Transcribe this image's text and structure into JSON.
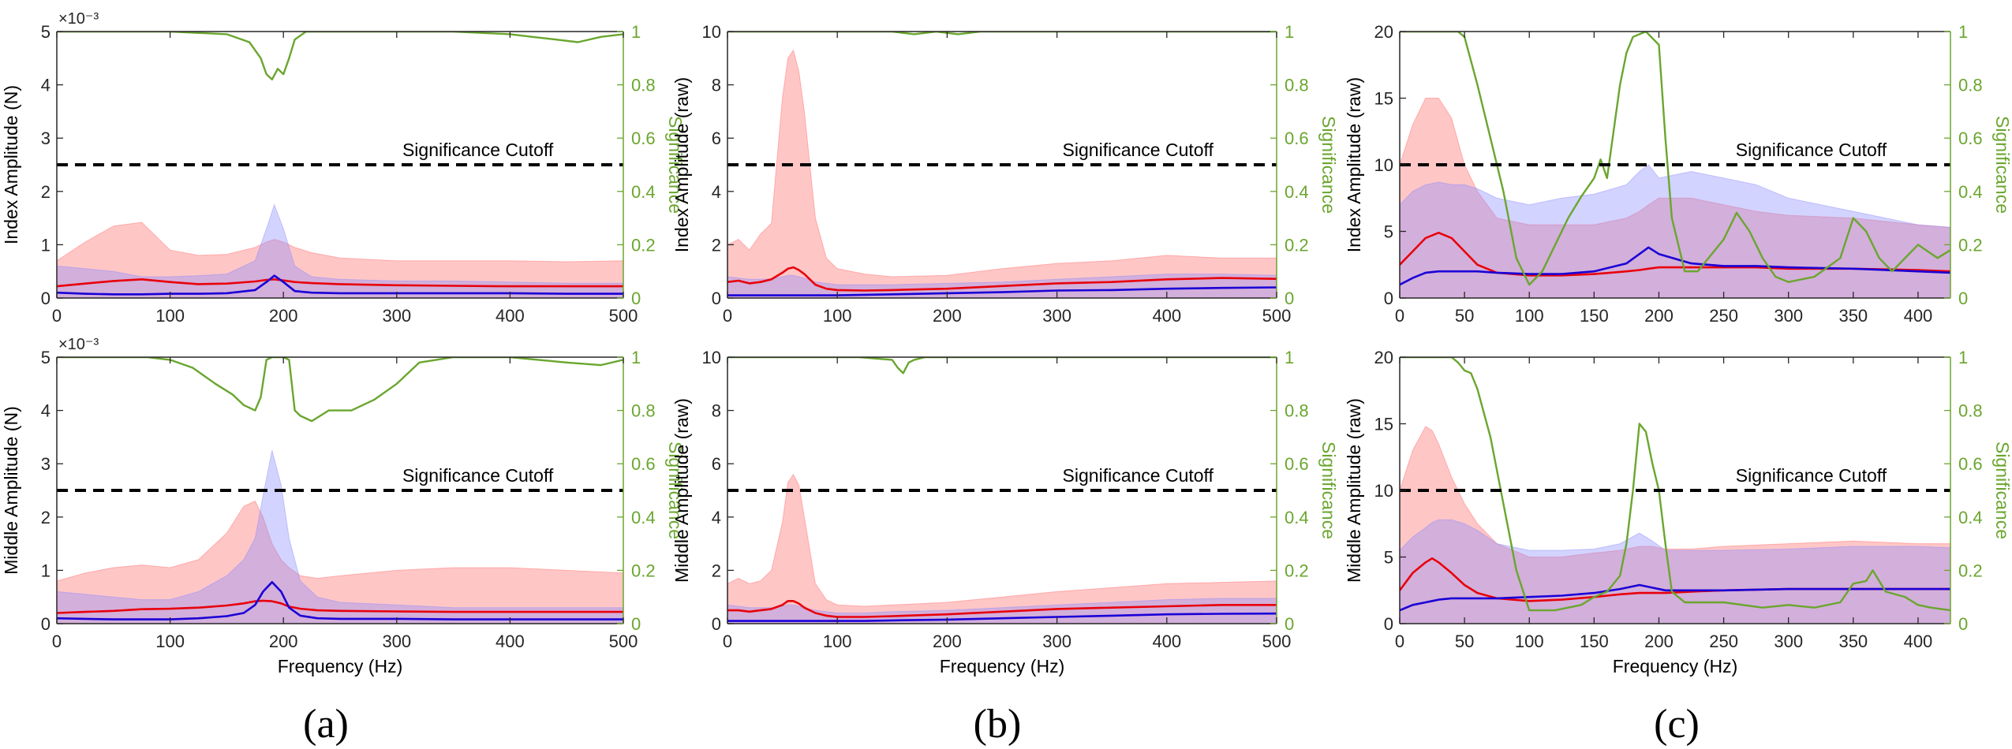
{
  "figure": {
    "captions": [
      "(a)",
      "(b)",
      "(c)"
    ],
    "colors": {
      "red_line": "#e8000b",
      "blue_line": "#1a00d6",
      "red_fill": "#ff6a6a",
      "blue_fill": "#8c8cff",
      "significance": "#6aa62e",
      "cutoff": "#000000",
      "axis": "#262626"
    }
  },
  "chart_data": [
    {
      "id": "a-top",
      "type": "line",
      "ylabel": "Index Amplitude (N)",
      "y2label": "Significance",
      "xlabel": "",
      "exponent": "×10⁻³",
      "xlim": [
        0,
        500
      ],
      "xticks": [
        0,
        100,
        200,
        300,
        400,
        500
      ],
      "ylim": [
        0,
        5
      ],
      "yticks": [
        0,
        1,
        2,
        3,
        4,
        5
      ],
      "y2lim": [
        0,
        1
      ],
      "y2ticks": [
        0,
        0.2,
        0.4,
        0.6,
        0.8,
        1
      ],
      "cutoff": {
        "value": 2.5,
        "label": "Significance Cutoff"
      },
      "x": [
        0,
        25,
        50,
        75,
        100,
        125,
        150,
        175,
        185,
        192,
        200,
        210,
        225,
        250,
        300,
        350,
        400,
        450,
        500
      ],
      "red_upper": [
        0.7,
        1.05,
        1.35,
        1.42,
        0.9,
        0.8,
        0.82,
        0.95,
        1.05,
        1.1,
        1.05,
        0.95,
        0.85,
        0.75,
        0.7,
        0.7,
        0.7,
        0.68,
        0.7
      ],
      "blue_upper": [
        0.6,
        0.55,
        0.5,
        0.4,
        0.4,
        0.42,
        0.45,
        0.7,
        1.3,
        1.75,
        1.3,
        0.6,
        0.4,
        0.35,
        0.32,
        0.32,
        0.3,
        0.28,
        0.28
      ],
      "red_mean": [
        0.22,
        0.27,
        0.32,
        0.35,
        0.3,
        0.26,
        0.27,
        0.31,
        0.34,
        0.35,
        0.33,
        0.3,
        0.28,
        0.26,
        0.24,
        0.23,
        0.22,
        0.22,
        0.22
      ],
      "blue_mean": [
        0.1,
        0.08,
        0.07,
        0.07,
        0.08,
        0.08,
        0.09,
        0.15,
        0.3,
        0.42,
        0.3,
        0.13,
        0.1,
        0.09,
        0.09,
        0.09,
        0.09,
        0.08,
        0.08
      ],
      "sig_x": [
        0,
        100,
        150,
        170,
        180,
        185,
        190,
        195,
        200,
        205,
        210,
        220,
        240,
        300,
        350,
        400,
        420,
        440,
        460,
        480,
        500
      ],
      "sig": [
        1.0,
        1.0,
        0.99,
        0.96,
        0.9,
        0.84,
        0.82,
        0.86,
        0.84,
        0.9,
        0.97,
        1.0,
        1.0,
        1.0,
        1.0,
        0.99,
        0.98,
        0.97,
        0.96,
        0.98,
        0.99
      ]
    },
    {
      "id": "b-top",
      "type": "line",
      "ylabel": "Index Amplitude (raw)",
      "y2label": "Significance",
      "xlabel": "",
      "exponent": "",
      "xlim": [
        0,
        500
      ],
      "xticks": [
        0,
        100,
        200,
        300,
        400,
        500
      ],
      "ylim": [
        0,
        10
      ],
      "yticks": [
        0,
        2,
        4,
        6,
        8,
        10
      ],
      "y2lim": [
        0,
        1
      ],
      "y2ticks": [
        0,
        0.2,
        0.4,
        0.6,
        0.8,
        1
      ],
      "cutoff": {
        "value": 5,
        "label": "Significance Cutoff"
      },
      "x": [
        0,
        10,
        20,
        30,
        40,
        50,
        55,
        60,
        65,
        70,
        80,
        90,
        100,
        125,
        150,
        200,
        250,
        300,
        350,
        400,
        450,
        500
      ],
      "red_upper": [
        2.0,
        2.2,
        1.8,
        2.4,
        2.8,
        7.5,
        9.0,
        9.3,
        8.5,
        7.0,
        3.0,
        1.5,
        1.1,
        0.9,
        0.8,
        0.85,
        1.1,
        1.3,
        1.4,
        1.6,
        1.5,
        1.5
      ],
      "blue_upper": [
        0.8,
        0.75,
        0.7,
        0.7,
        0.72,
        0.8,
        0.85,
        0.85,
        0.8,
        0.75,
        0.6,
        0.55,
        0.5,
        0.5,
        0.5,
        0.55,
        0.6,
        0.7,
        0.8,
        0.9,
        0.9,
        0.85
      ],
      "red_mean": [
        0.6,
        0.65,
        0.55,
        0.6,
        0.7,
        0.95,
        1.1,
        1.15,
        1.05,
        0.9,
        0.5,
        0.35,
        0.3,
        0.28,
        0.3,
        0.35,
        0.45,
        0.55,
        0.6,
        0.7,
        0.75,
        0.72
      ],
      "blue_mean": [
        0.1,
        0.1,
        0.1,
        0.1,
        0.1,
        0.1,
        0.1,
        0.1,
        0.1,
        0.1,
        0.1,
        0.1,
        0.1,
        0.12,
        0.14,
        0.18,
        0.22,
        0.28,
        0.3,
        0.35,
        0.38,
        0.4
      ],
      "sig_x": [
        0,
        150,
        170,
        190,
        210,
        230,
        300,
        400,
        500
      ],
      "sig": [
        1.0,
        1.0,
        0.99,
        1.0,
        0.99,
        1.0,
        1.0,
        1.0,
        1.0
      ]
    },
    {
      "id": "c-top",
      "type": "line",
      "ylabel": "Index Amplitude (raw)",
      "y2label": "Significance",
      "xlabel": "",
      "exponent": "",
      "xlim": [
        0,
        425
      ],
      "xticks": [
        0,
        50,
        100,
        150,
        200,
        250,
        300,
        350,
        400
      ],
      "ylim": [
        0,
        20
      ],
      "yticks": [
        0,
        5,
        10,
        15,
        20
      ],
      "y2lim": [
        0,
        1
      ],
      "y2ticks": [
        0,
        0.2,
        0.4,
        0.6,
        0.8,
        1
      ],
      "cutoff": {
        "value": 10,
        "label": "Significance Cutoff"
      },
      "x": [
        0,
        10,
        20,
        30,
        40,
        50,
        60,
        75,
        100,
        125,
        150,
        175,
        185,
        192,
        200,
        225,
        250,
        275,
        300,
        350,
        400,
        425
      ],
      "red_upper": [
        10,
        13,
        15,
        15,
        13.5,
        10,
        8,
        6,
        5.5,
        5.5,
        5.5,
        6,
        6.5,
        7,
        7.5,
        7.5,
        7,
        6.5,
        6.2,
        6,
        5.5,
        5.3
      ],
      "blue_upper": [
        7,
        8,
        8.5,
        8.7,
        8.5,
        8.5,
        8.2,
        7.5,
        7,
        7.5,
        7.8,
        8.5,
        9.5,
        10,
        9,
        9.5,
        9,
        8.5,
        7.5,
        6.5,
        5.5,
        5.3
      ],
      "red_mean": [
        2.5,
        3.5,
        4.5,
        4.9,
        4.5,
        3.5,
        2.5,
        1.9,
        1.7,
        1.7,
        1.8,
        2.0,
        2.1,
        2.2,
        2.3,
        2.3,
        2.3,
        2.3,
        2.2,
        2.2,
        2.1,
        2.0
      ],
      "blue_mean": [
        1.0,
        1.5,
        1.9,
        2.0,
        2.0,
        2.0,
        2.0,
        1.9,
        1.8,
        1.8,
        2.0,
        2.6,
        3.3,
        3.8,
        3.3,
        2.6,
        2.4,
        2.4,
        2.3,
        2.2,
        2.0,
        1.9
      ],
      "sig_x": [
        0,
        25,
        45,
        50,
        60,
        70,
        80,
        90,
        100,
        110,
        120,
        130,
        140,
        150,
        155,
        160,
        170,
        175,
        180,
        190,
        200,
        205,
        210,
        220,
        230,
        250,
        260,
        270,
        280,
        290,
        300,
        320,
        340,
        350,
        360,
        370,
        380,
        400,
        415,
        425
      ],
      "sig": [
        1.0,
        1.0,
        1.0,
        0.98,
        0.8,
        0.6,
        0.4,
        0.15,
        0.05,
        0.1,
        0.2,
        0.3,
        0.38,
        0.45,
        0.52,
        0.45,
        0.8,
        0.92,
        0.98,
        1.0,
        0.95,
        0.6,
        0.3,
        0.1,
        0.1,
        0.22,
        0.32,
        0.25,
        0.15,
        0.08,
        0.06,
        0.08,
        0.15,
        0.3,
        0.25,
        0.15,
        0.1,
        0.2,
        0.15,
        0.18
      ]
    },
    {
      "id": "a-bottom",
      "type": "line",
      "ylabel": "Middle Amplitude (N)",
      "y2label": "Significance",
      "xlabel": "Frequency (Hz)",
      "exponent": "×10⁻³",
      "xlim": [
        0,
        500
      ],
      "xticks": [
        0,
        100,
        200,
        300,
        400,
        500
      ],
      "ylim": [
        0,
        5
      ],
      "yticks": [
        0,
        1,
        2,
        3,
        4,
        5
      ],
      "y2lim": [
        0,
        1
      ],
      "y2ticks": [
        0,
        0.2,
        0.4,
        0.6,
        0.8,
        1
      ],
      "cutoff": {
        "value": 2.5,
        "label": "Significance Cutoff"
      },
      "x": [
        0,
        25,
        50,
        75,
        100,
        125,
        150,
        165,
        175,
        182,
        190,
        198,
        205,
        215,
        230,
        250,
        300,
        350,
        400,
        450,
        500
      ],
      "red_upper": [
        0.8,
        0.95,
        1.05,
        1.1,
        1.05,
        1.2,
        1.7,
        2.2,
        2.3,
        2.0,
        1.5,
        1.2,
        1.05,
        0.9,
        0.85,
        0.9,
        1.0,
        1.05,
        1.05,
        1.0,
        0.95
      ],
      "blue_upper": [
        0.6,
        0.55,
        0.5,
        0.45,
        0.45,
        0.6,
        0.9,
        1.2,
        1.6,
        2.4,
        3.25,
        2.6,
        1.6,
        0.8,
        0.5,
        0.4,
        0.35,
        0.3,
        0.3,
        0.3,
        0.3
      ],
      "red_mean": [
        0.2,
        0.22,
        0.24,
        0.27,
        0.28,
        0.3,
        0.34,
        0.38,
        0.42,
        0.43,
        0.42,
        0.38,
        0.32,
        0.28,
        0.25,
        0.24,
        0.23,
        0.22,
        0.22,
        0.22,
        0.22
      ],
      "blue_mean": [
        0.1,
        0.09,
        0.08,
        0.08,
        0.08,
        0.1,
        0.14,
        0.2,
        0.35,
        0.6,
        0.78,
        0.6,
        0.3,
        0.15,
        0.1,
        0.09,
        0.09,
        0.08,
        0.08,
        0.08,
        0.08
      ],
      "sig_x": [
        0,
        80,
        100,
        120,
        140,
        155,
        165,
        175,
        180,
        185,
        190,
        195,
        200,
        205,
        210,
        215,
        225,
        240,
        260,
        280,
        300,
        320,
        350,
        400,
        450,
        480,
        500
      ],
      "sig": [
        1.0,
        1.0,
        0.99,
        0.96,
        0.9,
        0.86,
        0.82,
        0.8,
        0.85,
        0.99,
        1.0,
        1.0,
        1.0,
        0.99,
        0.8,
        0.78,
        0.76,
        0.8,
        0.8,
        0.84,
        0.9,
        0.98,
        1.0,
        1.0,
        0.98,
        0.97,
        0.99
      ]
    },
    {
      "id": "b-bottom",
      "type": "line",
      "ylabel": "Middle Amplitude (raw)",
      "y2label": "Significance",
      "xlabel": "Frequency (Hz)",
      "exponent": "",
      "xlim": [
        0,
        500
      ],
      "xticks": [
        0,
        100,
        200,
        300,
        400,
        500
      ],
      "ylim": [
        0,
        10
      ],
      "yticks": [
        0,
        2,
        4,
        6,
        8,
        10
      ],
      "y2lim": [
        0,
        1
      ],
      "y2ticks": [
        0,
        0.2,
        0.4,
        0.6,
        0.8,
        1
      ],
      "cutoff": {
        "value": 5,
        "label": "Significance Cutoff"
      },
      "x": [
        0,
        10,
        20,
        30,
        40,
        50,
        55,
        60,
        65,
        70,
        80,
        90,
        100,
        125,
        150,
        200,
        250,
        300,
        350,
        400,
        450,
        500
      ],
      "red_upper": [
        1.5,
        1.7,
        1.5,
        1.6,
        2.0,
        3.8,
        5.3,
        5.6,
        5.2,
        4.0,
        1.5,
        0.9,
        0.7,
        0.65,
        0.7,
        0.8,
        1.0,
        1.2,
        1.35,
        1.5,
        1.55,
        1.6
      ],
      "blue_upper": [
        0.7,
        0.65,
        0.6,
        0.6,
        0.6,
        0.65,
        0.7,
        0.7,
        0.65,
        0.6,
        0.5,
        0.45,
        0.4,
        0.4,
        0.45,
        0.5,
        0.6,
        0.7,
        0.8,
        0.9,
        0.95,
        0.95
      ],
      "red_mean": [
        0.5,
        0.5,
        0.45,
        0.5,
        0.55,
        0.7,
        0.85,
        0.85,
        0.75,
        0.6,
        0.4,
        0.3,
        0.25,
        0.25,
        0.28,
        0.35,
        0.45,
        0.55,
        0.6,
        0.65,
        0.7,
        0.7
      ],
      "blue_mean": [
        0.1,
        0.1,
        0.1,
        0.1,
        0.1,
        0.1,
        0.1,
        0.1,
        0.1,
        0.1,
        0.1,
        0.1,
        0.1,
        0.1,
        0.12,
        0.15,
        0.2,
        0.25,
        0.3,
        0.35,
        0.37,
        0.38
      ],
      "sig_x": [
        0,
        120,
        150,
        155,
        160,
        165,
        170,
        180,
        200,
        230,
        300,
        400,
        500
      ],
      "sig": [
        1.0,
        1.0,
        0.99,
        0.96,
        0.94,
        0.98,
        0.99,
        1.0,
        1.0,
        1.0,
        1.0,
        1.0,
        1.0
      ]
    },
    {
      "id": "c-bottom",
      "type": "line",
      "ylabel": "Middle Amplitude (raw)",
      "y2label": "Significance",
      "xlabel": "Frequency (Hz)",
      "exponent": "",
      "xlim": [
        0,
        425
      ],
      "xticks": [
        0,
        50,
        100,
        150,
        200,
        250,
        300,
        350,
        400
      ],
      "ylim": [
        0,
        20
      ],
      "yticks": [
        0,
        5,
        10,
        15,
        20
      ],
      "y2lim": [
        0,
        1
      ],
      "y2ticks": [
        0,
        0.2,
        0.4,
        0.6,
        0.8,
        1
      ],
      "cutoff": {
        "value": 10,
        "label": "Significance Cutoff"
      },
      "x": [
        0,
        10,
        20,
        25,
        30,
        40,
        50,
        60,
        75,
        100,
        125,
        150,
        170,
        185,
        195,
        205,
        225,
        250,
        300,
        350,
        400,
        425
      ],
      "red_upper": [
        10,
        13,
        14.8,
        14.5,
        13.5,
        11,
        9,
        7.5,
        6,
        5,
        5,
        5.3,
        5.5,
        5.8,
        5.8,
        5.6,
        5.6,
        5.8,
        6,
        6.2,
        6,
        6
      ],
      "blue_upper": [
        5.5,
        6.5,
        7.2,
        7.6,
        7.8,
        7.8,
        7.5,
        7,
        6,
        5.5,
        5.5,
        5.6,
        6,
        6.8,
        6.2,
        5.5,
        5.5,
        5.5,
        5.6,
        5.8,
        5.8,
        5.7
      ],
      "red_mean": [
        2.5,
        3.8,
        4.6,
        4.9,
        4.6,
        3.8,
        2.9,
        2.3,
        1.9,
        1.7,
        1.8,
        2.0,
        2.2,
        2.3,
        2.3,
        2.3,
        2.4,
        2.5,
        2.6,
        2.6,
        2.6,
        2.6
      ],
      "blue_mean": [
        1.0,
        1.4,
        1.6,
        1.7,
        1.8,
        1.9,
        1.9,
        1.9,
        1.9,
        2.0,
        2.1,
        2.3,
        2.6,
        2.9,
        2.7,
        2.5,
        2.5,
        2.5,
        2.6,
        2.6,
        2.6,
        2.6
      ],
      "sig_x": [
        0,
        20,
        40,
        45,
        50,
        55,
        60,
        70,
        80,
        90,
        100,
        120,
        140,
        150,
        160,
        170,
        175,
        180,
        185,
        190,
        195,
        200,
        205,
        210,
        220,
        250,
        280,
        300,
        320,
        340,
        350,
        360,
        365,
        375,
        390,
        400,
        410,
        425
      ],
      "sig": [
        1.0,
        1.0,
        1.0,
        0.98,
        0.95,
        0.94,
        0.88,
        0.7,
        0.45,
        0.2,
        0.05,
        0.05,
        0.07,
        0.1,
        0.12,
        0.18,
        0.3,
        0.5,
        0.75,
        0.72,
        0.6,
        0.5,
        0.3,
        0.12,
        0.08,
        0.08,
        0.06,
        0.07,
        0.06,
        0.08,
        0.15,
        0.16,
        0.2,
        0.12,
        0.1,
        0.07,
        0.06,
        0.05
      ]
    }
  ]
}
